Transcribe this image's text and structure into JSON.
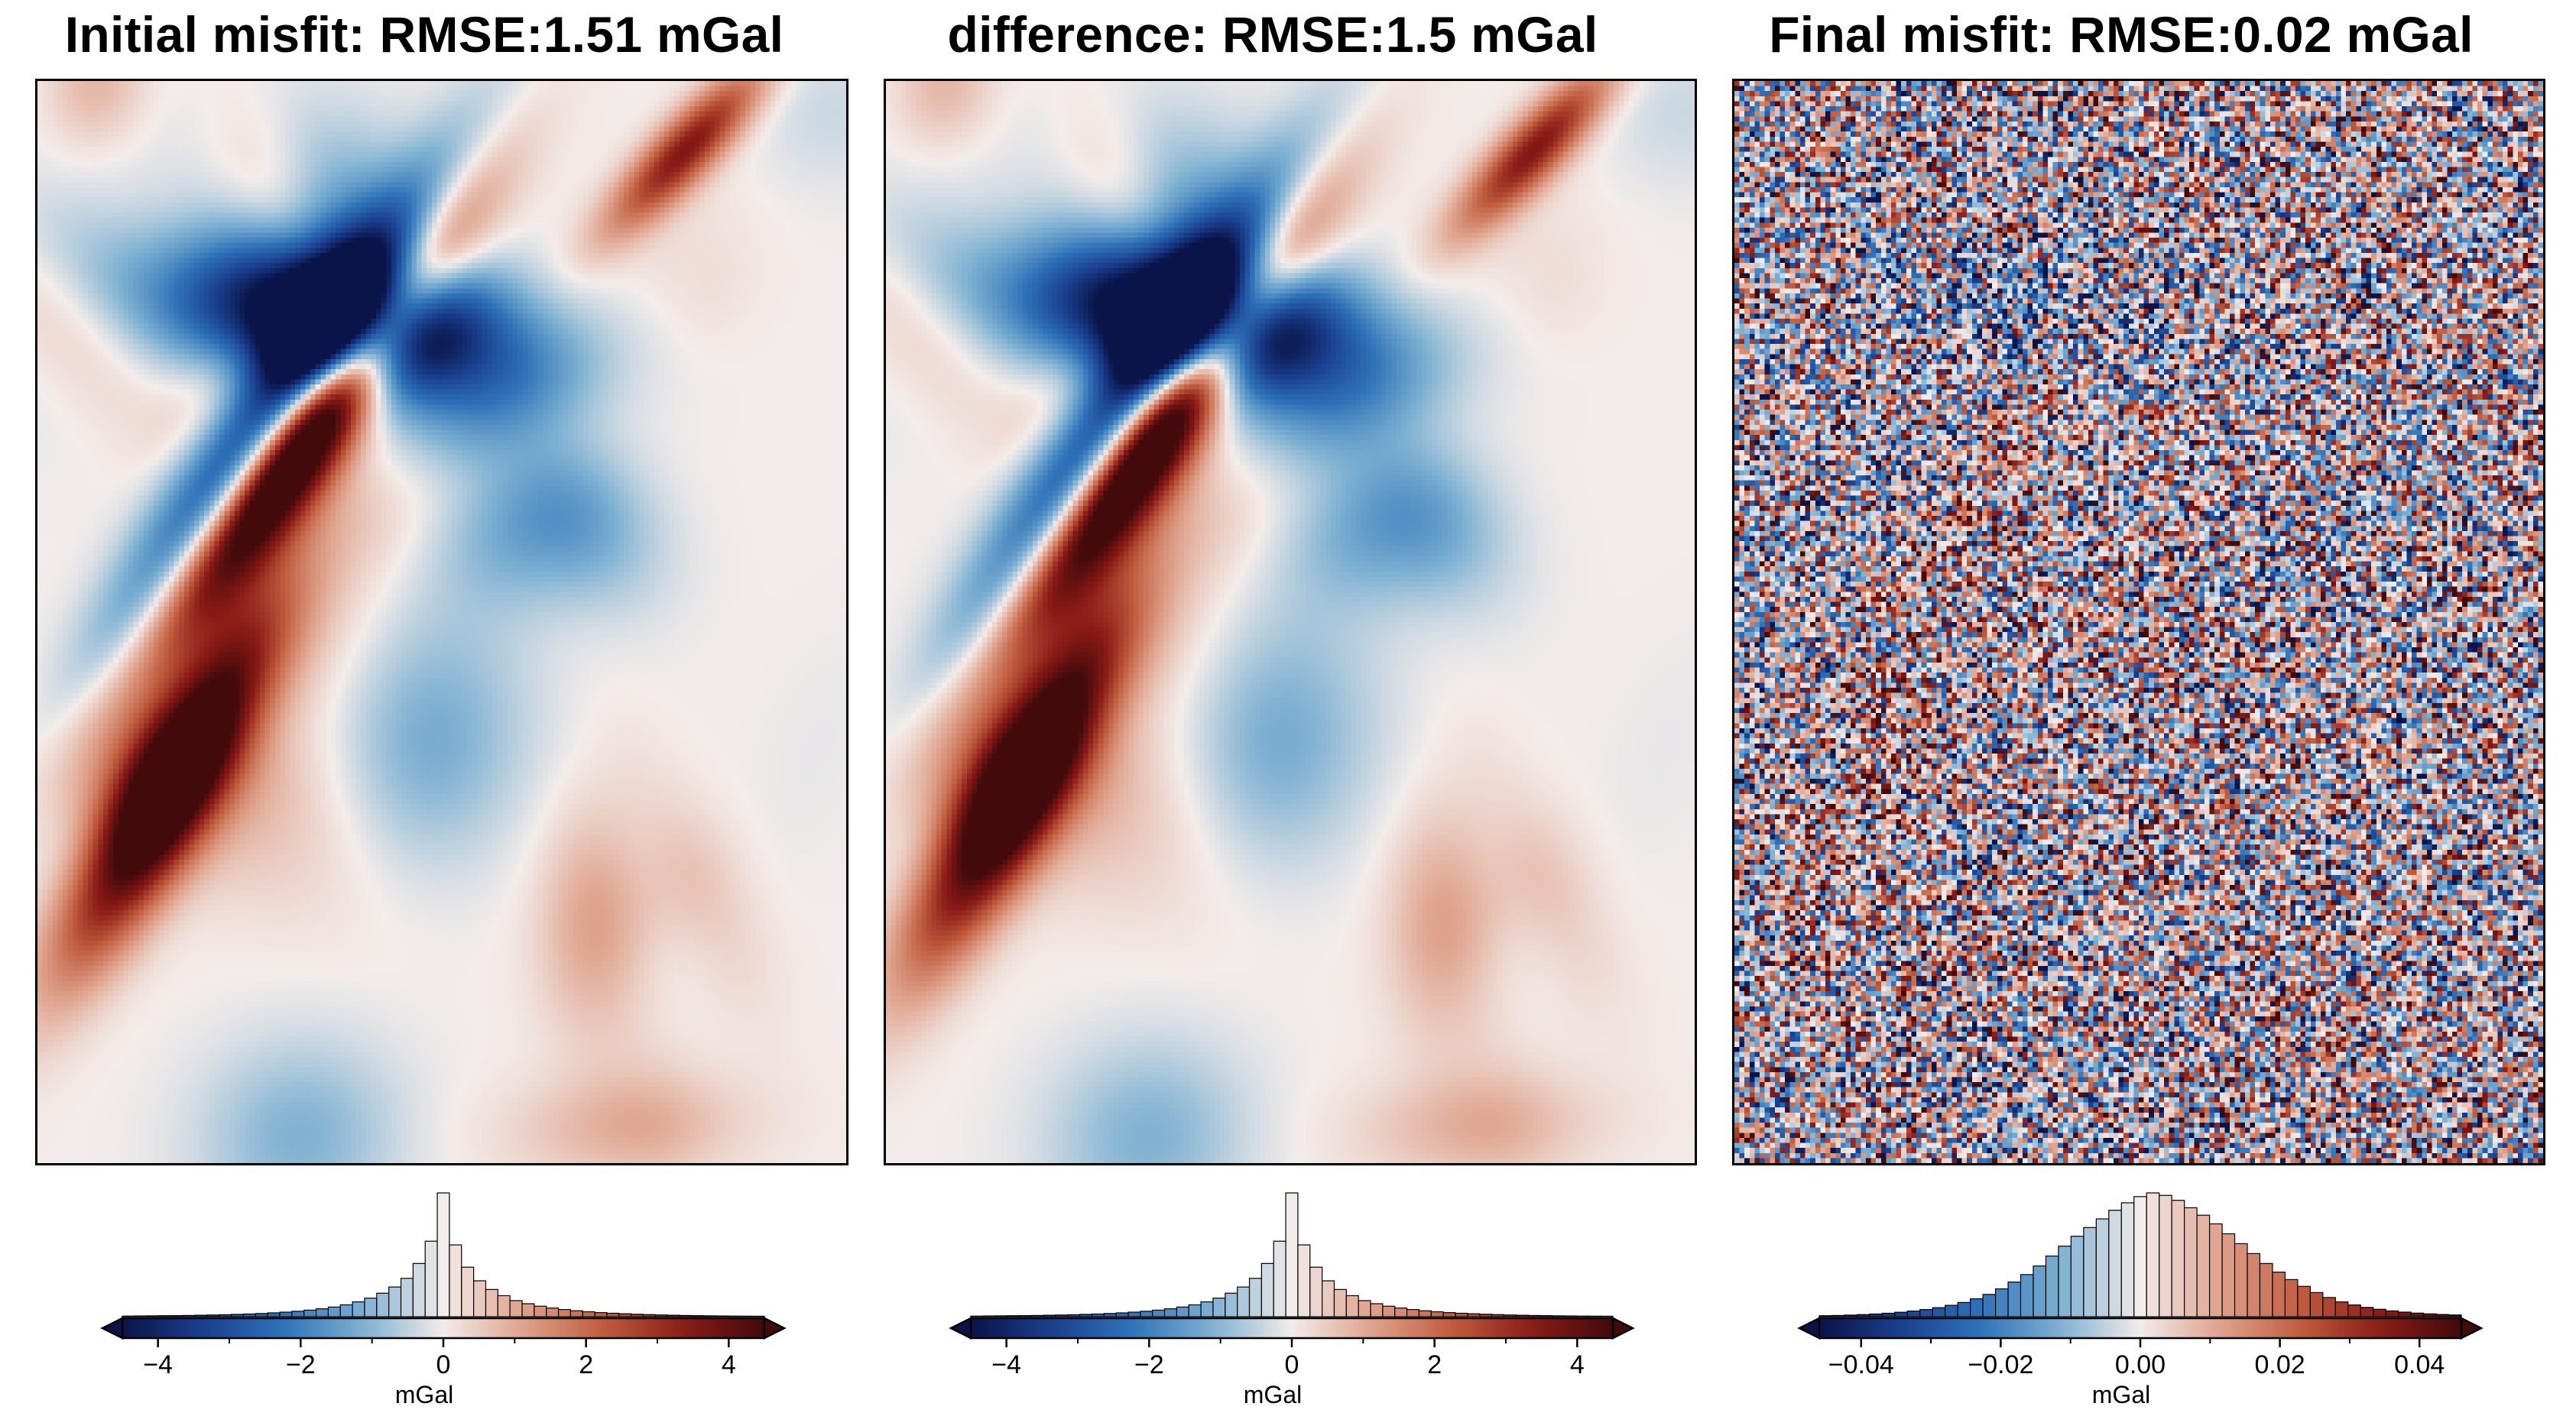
{
  "colormap": {
    "name": "vik",
    "stops": [
      "#0a1448",
      "#1a3f8f",
      "#2e72b8",
      "#7db0d2",
      "#f3ecea",
      "#dfa28c",
      "#c05c3e",
      "#8a1a16",
      "#430a0c"
    ]
  },
  "panels": [
    {
      "id": "initial",
      "title": "Initial misfit: RMSE:1.51 mGal",
      "field_seed": 11,
      "field_scale": 1.0,
      "noise": 0.0,
      "colorbar": {
        "range": [
          -4.5,
          4.5
        ],
        "ticks": [
          -4,
          -2,
          0,
          2,
          4
        ],
        "tick_labels": [
          "−4",
          "−2",
          "0",
          "2",
          "4"
        ],
        "minor_ticks": [
          -3,
          -1,
          1,
          3
        ],
        "unit": "mGal"
      },
      "histogram": [
        0.5,
        0.6,
        0.7,
        0.8,
        0.9,
        1.0,
        1.2,
        1.4,
        1.6,
        1.9,
        2.2,
        2.6,
        3.1,
        3.7,
        4.4,
        5.3,
        6.4,
        7.8,
        9.6,
        12,
        15,
        19,
        24,
        31,
        43,
        61,
        100,
        58,
        40,
        29,
        22,
        17,
        13,
        10.5,
        8.5,
        7,
        5.8,
        4.8,
        4,
        3.3,
        2.8,
        2.4,
        2,
        1.7,
        1.4,
        1.2,
        1,
        0.85,
        0.7,
        0.6,
        0.5,
        0.45,
        0.4
      ]
    },
    {
      "id": "difference",
      "title": "difference: RMSE:1.5 mGal",
      "field_seed": 11,
      "field_scale": 1.0,
      "noise": 0.0,
      "colorbar": {
        "range": [
          -4.5,
          4.5
        ],
        "ticks": [
          -4,
          -2,
          0,
          2,
          4
        ],
        "tick_labels": [
          "−4",
          "−2",
          "0",
          "2",
          "4"
        ],
        "minor_ticks": [
          -3,
          -1,
          1,
          3
        ],
        "unit": "mGal"
      },
      "histogram": [
        0.5,
        0.6,
        0.7,
        0.8,
        0.9,
        1.0,
        1.2,
        1.4,
        1.6,
        1.9,
        2.2,
        2.6,
        3.1,
        3.7,
        4.4,
        5.3,
        6.4,
        7.8,
        9.6,
        12,
        15,
        19,
        24,
        31,
        43,
        61,
        100,
        58,
        40,
        29,
        22,
        17,
        13,
        10.5,
        8.5,
        7,
        5.8,
        4.8,
        4,
        3.3,
        2.8,
        2.4,
        2,
        1.7,
        1.4,
        1.2,
        1,
        0.85,
        0.7,
        0.6,
        0.5,
        0.45,
        0.4
      ]
    },
    {
      "id": "final",
      "title": "Final misfit: RMSE:0.02 mGal",
      "field_seed": 29,
      "field_scale": 0.35,
      "noise": 0.85,
      "colorbar": {
        "range": [
          -0.046,
          0.046
        ],
        "ticks": [
          -0.04,
          -0.02,
          0.0,
          0.02,
          0.04
        ],
        "tick_labels": [
          "−0.04",
          "−0.02",
          "0.00",
          "0.02",
          "0.04"
        ],
        "minor_ticks": [
          -0.03,
          -0.01,
          0.01,
          0.03
        ],
        "unit": "mGal"
      },
      "histogram": [
        0.8,
        1,
        1.3,
        1.7,
        2.2,
        2.8,
        3.6,
        4.6,
        5.8,
        7.3,
        9.2,
        11.5,
        14.5,
        18,
        22.5,
        28,
        34,
        41,
        49,
        57,
        65,
        72,
        79,
        86,
        92,
        97,
        100,
        98,
        94,
        88,
        82,
        75,
        67,
        59,
        51,
        43,
        36,
        30,
        24.5,
        19.5,
        15.5,
        12,
        9.5,
        7.5,
        6,
        4.7,
        3.7,
        2.9,
        2.3,
        1.8,
        1.4
      ]
    }
  ]
}
